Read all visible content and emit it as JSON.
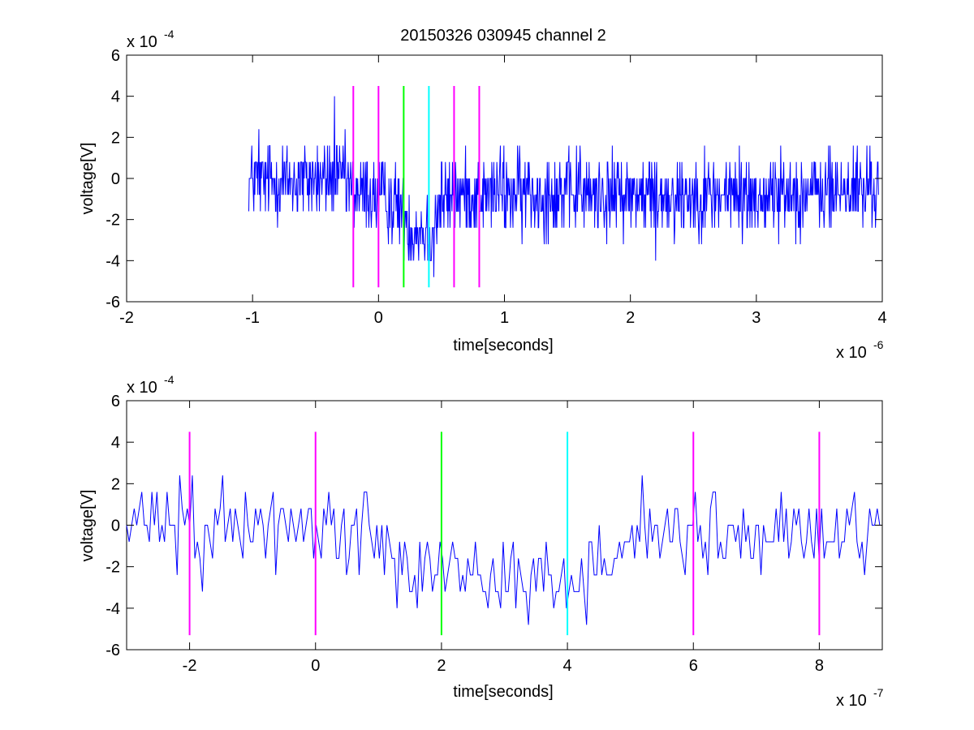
{
  "figure": {
    "title": "20150326 030945 channel 2"
  },
  "colors": {
    "trace": "#0000ff",
    "magenta": "#ff00ff",
    "green": "#00ff00",
    "cyan": "#00ffff",
    "axis": "#000000"
  },
  "chart_data": [
    {
      "type": "line",
      "title": "20150326 030945 channel 2",
      "xlabel": "time[seconds]",
      "ylabel": "voltage[V]",
      "x_multiplier": "x 10",
      "x_exponent": "-6",
      "y_multiplier": "x 10",
      "y_exponent": "-4",
      "xlim": [
        -2,
        4
      ],
      "ylim": [
        -6,
        6
      ],
      "xticks": [
        -2,
        -1,
        0,
        1,
        2,
        3,
        4
      ],
      "yticks": [
        -6,
        -4,
        -2,
        0,
        2,
        4,
        6
      ],
      "xtick_labels": [
        "-2",
        "-1",
        "0",
        "1",
        "2",
        "3",
        "4"
      ],
      "ytick_labels": [
        "-6",
        "-4",
        "-2",
        "0",
        "2",
        "4",
        "6"
      ],
      "grid": false,
      "series": [
        {
          "color": "#0000ff",
          "x_range": [
            -1.03,
            3.97
          ],
          "quantum": 0.8,
          "baseline": [
            [
              -1.03,
              -0.1
            ],
            [
              -0.35,
              -0.1
            ],
            [
              -0.2,
              -0.6
            ],
            [
              0.15,
              -1.2
            ],
            [
              0.25,
              -2.4
            ],
            [
              0.4,
              -2.6
            ],
            [
              0.5,
              -1.0
            ],
            [
              0.7,
              -0.8
            ],
            [
              1.0,
              -0.7
            ],
            [
              2.0,
              -0.8
            ],
            [
              3.0,
              -0.8
            ],
            [
              3.97,
              -0.5
            ]
          ],
          "noise": 1.0,
          "n_points": 1250,
          "spikes": [
            [
              -0.35,
              4.0
            ],
            [
              -0.95,
              2.4
            ],
            [
              0.44,
              -4.8
            ],
            [
              2.2,
              -4.0
            ],
            [
              1.6,
              1.6
            ],
            [
              -0.28,
              1.6
            ]
          ]
        }
      ],
      "vlines": [
        {
          "x": -0.2,
          "y0": -5.3,
          "y1": 4.5,
          "color": "#ff00ff"
        },
        {
          "x": 0.0,
          "y0": -5.3,
          "y1": 4.5,
          "color": "#ff00ff"
        },
        {
          "x": 0.2,
          "y0": -5.3,
          "y1": 4.5,
          "color": "#00ff00"
        },
        {
          "x": 0.4,
          "y0": -5.3,
          "y1": 4.5,
          "color": "#00ffff"
        },
        {
          "x": 0.6,
          "y0": -5.3,
          "y1": 4.5,
          "color": "#ff00ff"
        },
        {
          "x": 0.8,
          "y0": -5.3,
          "y1": 4.5,
          "color": "#ff00ff"
        }
      ]
    },
    {
      "type": "line",
      "xlabel": "time[seconds]",
      "ylabel": "voltage[V]",
      "x_multiplier": "x 10",
      "x_exponent": "-7",
      "y_multiplier": "x 10",
      "y_exponent": "-4",
      "xlim": [
        -3,
        9
      ],
      "ylim": [
        -6,
        6
      ],
      "xticks": [
        -2,
        0,
        2,
        4,
        6,
        8
      ],
      "yticks": [
        -6,
        -4,
        -2,
        0,
        2,
        4,
        6
      ],
      "xtick_labels": [
        "-2",
        "0",
        "2",
        "4",
        "6",
        "8"
      ],
      "ytick_labels": [
        "-6",
        "-4",
        "-2",
        "0",
        "2",
        "4",
        "6"
      ],
      "grid": false,
      "series": [
        {
          "color": "#0000ff",
          "x_range": [
            -3,
            9
          ],
          "quantum": 0.8,
          "baseline": [
            [
              -3,
              -0.1
            ],
            [
              -1.0,
              -0.1
            ],
            [
              0.5,
              -0.3
            ],
            [
              1.2,
              -0.8
            ],
            [
              1.6,
              -1.6
            ],
            [
              2.0,
              -2.2
            ],
            [
              3.0,
              -2.5
            ],
            [
              4.0,
              -2.8
            ],
            [
              4.4,
              -1.5
            ],
            [
              5.0,
              -0.6
            ],
            [
              6.0,
              -0.5
            ],
            [
              7.0,
              -0.7
            ],
            [
              8.0,
              -0.5
            ],
            [
              9.0,
              0.0
            ]
          ],
          "noise": 1.0,
          "n_points": 300,
          "spikes": [
            [
              -1.8,
              -3.2
            ],
            [
              4.3,
              -4.8
            ],
            [
              5.2,
              2.4
            ],
            [
              -2.5,
              1.6
            ],
            [
              -1.1,
              1.6
            ],
            [
              0.2,
              1.6
            ],
            [
              3.8,
              -4.0
            ]
          ]
        }
      ],
      "vlines": [
        {
          "x": -2,
          "y0": -5.3,
          "y1": 4.5,
          "color": "#ff00ff"
        },
        {
          "x": 0,
          "y0": -5.3,
          "y1": 4.5,
          "color": "#ff00ff"
        },
        {
          "x": 2,
          "y0": -5.3,
          "y1": 4.5,
          "color": "#00ff00"
        },
        {
          "x": 4,
          "y0": -5.3,
          "y1": 4.5,
          "color": "#00ffff"
        },
        {
          "x": 6,
          "y0": -5.3,
          "y1": 4.5,
          "color": "#ff00ff"
        },
        {
          "x": 8,
          "y0": -5.3,
          "y1": 4.5,
          "color": "#ff00ff"
        }
      ]
    }
  ]
}
